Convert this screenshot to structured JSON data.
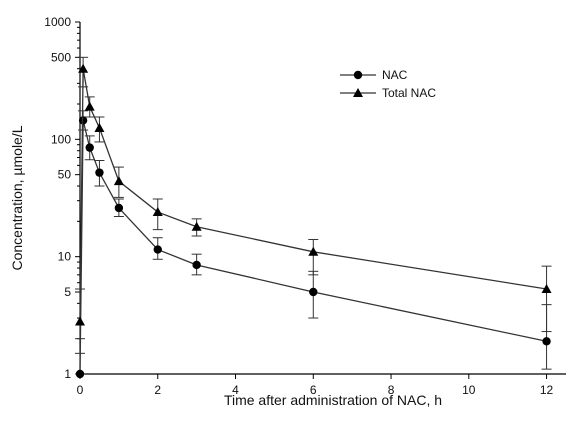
{
  "chart_data": {
    "type": "line",
    "xlabel": "Time after administration of NAC, h",
    "ylabel": "Concentration, µmole/L",
    "yscale": "log",
    "xlim": [
      0,
      12.5
    ],
    "ylim": [
      1,
      1000
    ],
    "x_ticks": [
      0,
      2,
      4,
      6,
      8,
      10,
      12
    ],
    "x_tick_labels": [
      "0",
      "2",
      "4",
      "6",
      "8",
      "10",
      "12"
    ],
    "y_ticks": [
      1,
      5,
      10,
      50,
      100,
      500,
      1000
    ],
    "y_tick_labels": [
      "1",
      "5",
      "10",
      "50",
      "100",
      "500",
      "1000"
    ],
    "grid": false,
    "legend_position": "top-right",
    "series": [
      {
        "name": "NAC",
        "marker": "circle",
        "color": "#000000",
        "x": [
          0,
          0.08,
          0.25,
          0.5,
          1,
          2,
          3,
          6,
          12
        ],
        "y": [
          1,
          145,
          85,
          52,
          26,
          11.5,
          8.5,
          5,
          1.9
        ],
        "err_upper": [
          0.5,
          30,
          22,
          14,
          5,
          3,
          2,
          2.5,
          2
        ],
        "err_lower": [
          0,
          25,
          18,
          12,
          4,
          2,
          1.5,
          2,
          0.8
        ]
      },
      {
        "name": "Total NAC",
        "marker": "triangle",
        "color": "#000000",
        "x": [
          0,
          0.08,
          0.25,
          0.5,
          1,
          2,
          3,
          6,
          12
        ],
        "y": [
          2.8,
          400,
          190,
          125,
          44,
          24,
          18,
          11,
          5.3
        ],
        "err_upper": [
          2.5,
          100,
          40,
          30,
          14,
          7,
          3,
          3,
          3
        ],
        "err_lower": [
          0.8,
          120,
          35,
          30,
          12,
          7,
          3,
          4,
          3
        ]
      }
    ]
  }
}
